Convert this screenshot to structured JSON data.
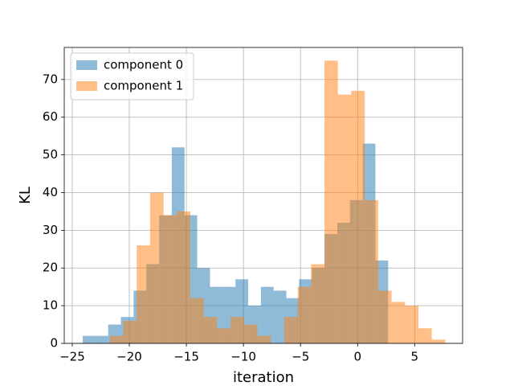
{
  "chart_data": {
    "type": "histogram",
    "xlabel": "iteration",
    "ylabel": "KL",
    "series": [
      {
        "name": "component 0",
        "color": "#1f77b4",
        "opacity": 0.5,
        "bins": [
          -24.08,
          -22.97,
          -21.85,
          -20.74,
          -19.62,
          -18.51,
          -17.39,
          -16.28,
          -15.16,
          -14.05,
          -12.93,
          -11.82,
          -10.7,
          -9.59,
          -8.47,
          -7.36,
          -6.24,
          -5.13,
          -4.01,
          -2.9,
          -1.78,
          -0.67,
          0.45,
          1.56,
          2.68
        ],
        "values": [
          2,
          2,
          5,
          7,
          14,
          21,
          34,
          52,
          34,
          20,
          15,
          15,
          17,
          10,
          15,
          14,
          12,
          17,
          20,
          29,
          32,
          38,
          53,
          22
        ]
      },
      {
        "name": "component 1",
        "color": "#ff7f0e",
        "opacity": 0.5,
        "bins": [
          -21.7,
          -20.53,
          -19.35,
          -18.18,
          -17.0,
          -15.83,
          -14.65,
          -13.48,
          -12.3,
          -11.13,
          -9.95,
          -8.78,
          -7.6,
          -6.43,
          -5.25,
          -4.08,
          -2.9,
          -1.73,
          -0.55,
          0.63,
          1.8,
          2.98,
          4.15,
          5.33,
          6.5,
          7.68
        ],
        "values": [
          2,
          6,
          26,
          40,
          34,
          35,
          12,
          7,
          4,
          7,
          5,
          2,
          0,
          7,
          15,
          21,
          75,
          66,
          67,
          38,
          14,
          11,
          10,
          4,
          1
        ]
      }
    ],
    "xlim": [
      -25.7,
      9.2
    ],
    "ylim": [
      0,
      78.5
    ],
    "xticks": [
      {
        "value": -25,
        "label": "−25"
      },
      {
        "value": -20,
        "label": "−20"
      },
      {
        "value": -15,
        "label": "−15"
      },
      {
        "value": -10,
        "label": "−10"
      },
      {
        "value": -5,
        "label": "−5"
      },
      0,
      5
    ],
    "yticks": [
      0,
      10,
      20,
      30,
      40,
      50,
      60,
      70
    ],
    "grid": true,
    "legend": "upper left"
  }
}
